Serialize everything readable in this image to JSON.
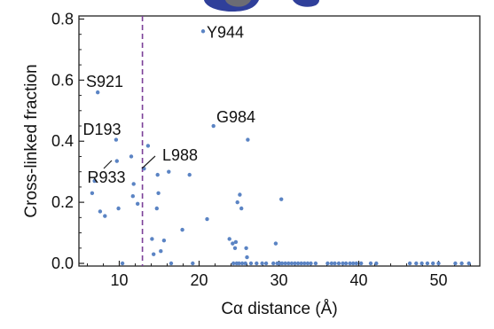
{
  "chart_data": {
    "type": "scatter",
    "xlabel": "Cα distance (Å)",
    "ylabel": "Cross-linked fraction",
    "xlim": [
      5,
      55
    ],
    "ylim": [
      -0.01,
      0.8
    ],
    "xticks": [
      10,
      20,
      30,
      40,
      50
    ],
    "xtick_labels": [
      "10",
      "20",
      "30",
      "40",
      "50"
    ],
    "yticks": [
      0.0,
      0.2,
      0.4,
      0.6,
      0.8
    ],
    "ytick_labels": [
      "0.0",
      "0.2",
      "0.4",
      "0.6",
      "0.8"
    ],
    "grid": false,
    "point_color": "#5b84c4",
    "threshold_line": {
      "x": 12.9,
      "style": "dashed",
      "color": "#7b3f98"
    },
    "annotations": [
      {
        "text": "Y944",
        "x": 20.5,
        "y": 0.76
      },
      {
        "text": "S921",
        "x": 7.3,
        "y": 0.56
      },
      {
        "text": "G984",
        "x": 21.8,
        "y": 0.45
      },
      {
        "text": "D193",
        "x": 9.6,
        "y": 0.405
      },
      {
        "text": "L988",
        "x": 13.1,
        "y": 0.31
      },
      {
        "text": "R933",
        "x": 9.7,
        "y": 0.335
      }
    ],
    "points": [
      [
        6.6,
        0.23
      ],
      [
        6.9,
        0.27
      ],
      [
        7.3,
        0.56
      ],
      [
        7.6,
        0.17
      ],
      [
        8.2,
        0.155
      ],
      [
        9.6,
        0.405
      ],
      [
        9.7,
        0.335
      ],
      [
        9.9,
        0.18
      ],
      [
        10.4,
        0.0
      ],
      [
        11.5,
        0.35
      ],
      [
        11.7,
        0.22
      ],
      [
        11.8,
        0.26
      ],
      [
        12.3,
        0.195
      ],
      [
        13.1,
        0.31
      ],
      [
        13.6,
        0.385
      ],
      [
        14.1,
        0.08
      ],
      [
        14.3,
        0.03
      ],
      [
        14.8,
        0.29
      ],
      [
        14.9,
        0.23
      ],
      [
        14.7,
        0.18
      ],
      [
        15.2,
        0.04
      ],
      [
        15.6,
        0.075
      ],
      [
        16.2,
        0.3
      ],
      [
        16.5,
        0.0
      ],
      [
        17.9,
        0.11
      ],
      [
        18.8,
        0.29
      ],
      [
        19.2,
        0.0
      ],
      [
        20.5,
        0.76
      ],
      [
        21.0,
        0.145
      ],
      [
        21.8,
        0.45
      ],
      [
        23.8,
        0.08
      ],
      [
        24.2,
        0.065
      ],
      [
        24.5,
        0.05
      ],
      [
        24.6,
        0.07
      ],
      [
        24.8,
        0.2
      ],
      [
        25.1,
        0.225
      ],
      [
        25.3,
        0.18
      ],
      [
        25.9,
        0.05
      ],
      [
        26.1,
        0.405
      ],
      [
        26.0,
        0.02
      ],
      [
        29.6,
        0.065
      ],
      [
        30.3,
        0.21
      ],
      [
        24.3,
        0.0
      ],
      [
        24.7,
        0.0
      ],
      [
        25.0,
        0.0
      ],
      [
        25.4,
        0.0
      ],
      [
        25.8,
        0.0
      ],
      [
        26.5,
        0.0
      ],
      [
        27.2,
        0.0
      ],
      [
        27.9,
        0.0
      ],
      [
        28.4,
        0.0
      ],
      [
        29.3,
        0.0
      ],
      [
        29.8,
        0.0
      ],
      [
        30.1,
        0.0
      ],
      [
        30.4,
        0.0
      ],
      [
        30.8,
        0.0
      ],
      [
        31.2,
        0.0
      ],
      [
        31.6,
        0.0
      ],
      [
        32.0,
        0.0
      ],
      [
        32.4,
        0.0
      ],
      [
        32.8,
        0.0
      ],
      [
        33.2,
        0.0
      ],
      [
        33.6,
        0.0
      ],
      [
        34.0,
        0.0
      ],
      [
        34.6,
        0.0
      ],
      [
        36.1,
        0.0
      ],
      [
        36.6,
        0.0
      ],
      [
        37.0,
        0.0
      ],
      [
        37.5,
        0.0
      ],
      [
        38.0,
        0.0
      ],
      [
        38.4,
        0.0
      ],
      [
        38.9,
        0.0
      ],
      [
        39.3,
        0.0
      ],
      [
        39.7,
        0.0
      ],
      [
        40.3,
        0.0
      ],
      [
        41.5,
        0.0
      ],
      [
        42.2,
        0.0
      ],
      [
        46.4,
        0.0
      ],
      [
        47.2,
        0.0
      ],
      [
        47.9,
        0.0
      ],
      [
        48.6,
        0.0
      ],
      [
        49.3,
        0.0
      ],
      [
        50.0,
        0.0
      ],
      [
        52.1,
        0.0
      ],
      [
        52.9,
        0.0
      ],
      [
        53.8,
        0.0
      ]
    ]
  }
}
